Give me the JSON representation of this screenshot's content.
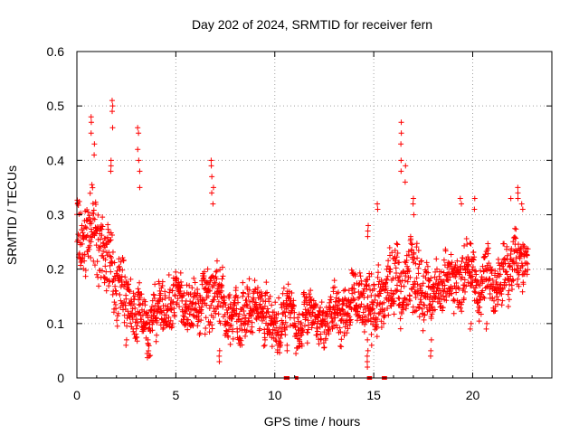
{
  "chart_data": {
    "type": "scatter",
    "title": "Day 202 of 2024, SRMTID for receiver fern",
    "xlabel": "GPS time / hours",
    "ylabel": "SRMTID / TECUs",
    "xlim": [
      0,
      24
    ],
    "ylim": [
      0,
      0.6
    ],
    "xticks": [
      0,
      5,
      10,
      15,
      20
    ],
    "xtick_labels": [
      "0",
      "5",
      "10",
      "15",
      "20"
    ],
    "yticks": [
      0,
      0.1,
      0.2,
      0.3,
      0.4,
      0.5,
      0.6
    ],
    "ytick_labels": [
      "0",
      "0.1",
      "0.2",
      "0.3",
      "0.4",
      "0.5",
      "0.6"
    ],
    "grid": true,
    "marker": "+",
    "color": "#ff0000",
    "envelope": {
      "x": [
        0,
        0.3,
        0.7,
        1.0,
        1.5,
        1.8,
        2.2,
        2.6,
        3.0,
        3.3,
        3.8,
        4.5,
        5.5,
        6.2,
        6.8,
        7.3,
        8.0,
        9.0,
        10.0,
        10.8,
        11.5,
        12.5,
        13.5,
        14.3,
        14.8,
        15.3,
        16.0,
        16.5,
        17.0,
        17.5,
        18.0,
        19.0,
        19.5,
        20.0,
        20.5,
        21.0,
        21.5,
        22.0,
        22.6,
        22.8
      ],
      "base": [
        0.26,
        0.29,
        0.28,
        0.25,
        0.22,
        0.2,
        0.17,
        0.15,
        0.13,
        0.12,
        0.12,
        0.13,
        0.13,
        0.13,
        0.14,
        0.13,
        0.12,
        0.12,
        0.11,
        0.1,
        0.1,
        0.11,
        0.12,
        0.14,
        0.15,
        0.15,
        0.17,
        0.18,
        0.2,
        0.18,
        0.16,
        0.17,
        0.2,
        0.17,
        0.17,
        0.17,
        0.19,
        0.21,
        0.22,
        0.2
      ],
      "spread": [
        0.05,
        0.06,
        0.06,
        0.06,
        0.05,
        0.05,
        0.05,
        0.04,
        0.04,
        0.04,
        0.04,
        0.04,
        0.04,
        0.04,
        0.05,
        0.04,
        0.04,
        0.04,
        0.04,
        0.03,
        0.03,
        0.03,
        0.04,
        0.04,
        0.05,
        0.04,
        0.05,
        0.05,
        0.06,
        0.05,
        0.04,
        0.04,
        0.05,
        0.04,
        0.04,
        0.04,
        0.04,
        0.04,
        0.04,
        0.02
      ]
    },
    "spikes": [
      {
        "x": 0.7,
        "ys": [
          0.45,
          0.47,
          0.48
        ]
      },
      {
        "x": 0.9,
        "ys": [
          0.41,
          0.43
        ]
      },
      {
        "x": 1.7,
        "ys": [
          0.38,
          0.39,
          0.4
        ]
      },
      {
        "x": 1.8,
        "ys": [
          0.46,
          0.49,
          0.5,
          0.51
        ]
      },
      {
        "x": 3.1,
        "ys": [
          0.4,
          0.42,
          0.45,
          0.46
        ]
      },
      {
        "x": 3.2,
        "ys": [
          0.38,
          0.35
        ]
      },
      {
        "x": 6.8,
        "ys": [
          0.34,
          0.37,
          0.39,
          0.4
        ]
      },
      {
        "x": 6.9,
        "ys": [
          0.32,
          0.35
        ]
      },
      {
        "x": 15.2,
        "ys": [
          0.31,
          0.32
        ]
      },
      {
        "x": 16.4,
        "ys": [
          0.38,
          0.4,
          0.43,
          0.45,
          0.47
        ]
      },
      {
        "x": 16.6,
        "ys": [
          0.36,
          0.39
        ]
      },
      {
        "x": 17.0,
        "ys": [
          0.3,
          0.32,
          0.33
        ]
      },
      {
        "x": 19.4,
        "ys": [
          0.32,
          0.33
        ]
      },
      {
        "x": 20.1,
        "ys": [
          0.31,
          0.33
        ]
      },
      {
        "x": 22.3,
        "ys": [
          0.33,
          0.34,
          0.35
        ]
      },
      {
        "x": 22.5,
        "ys": [
          0.31,
          0.32
        ]
      },
      {
        "x": 21.9,
        "ys": [
          0.33
        ]
      },
      {
        "x": 14.7,
        "ys": [
          0.26,
          0.27,
          0.28
        ]
      }
    ],
    "dips": [
      {
        "x": 2.5,
        "ys": [
          0.06,
          0.07
        ]
      },
      {
        "x": 3.6,
        "ys": [
          0.07,
          0.09
        ]
      },
      {
        "x": 7.2,
        "ys": [
          0.03,
          0.04,
          0.05
        ]
      },
      {
        "x": 9.5,
        "ys": [
          0.06,
          0.07
        ]
      },
      {
        "x": 10.6,
        "ys": [
          0.05,
          0.06
        ]
      },
      {
        "x": 14.7,
        "ys": [
          0.02,
          0.03,
          0.04,
          0.05,
          0.07
        ]
      },
      {
        "x": 14.9,
        "ys": [
          0.06,
          0.08
        ]
      },
      {
        "x": 17.9,
        "ys": [
          0.04,
          0.05,
          0.07
        ]
      },
      {
        "x": 19.9,
        "ys": [
          0.09,
          0.1
        ]
      },
      {
        "x": 20.7,
        "ys": [
          0.09,
          0.1
        ]
      }
    ],
    "floor_points": [
      {
        "x": 10.55,
        "y": 0.0
      },
      {
        "x": 10.65,
        "y": 0.0
      },
      {
        "x": 11.1,
        "y": 0.0
      },
      {
        "x": 14.75,
        "y": 0.0
      },
      {
        "x": 14.82,
        "y": 0.0
      },
      {
        "x": 15.5,
        "y": 0.0
      },
      {
        "x": 15.58,
        "y": 0.0
      }
    ],
    "sample_interval_hours": 0.011
  }
}
